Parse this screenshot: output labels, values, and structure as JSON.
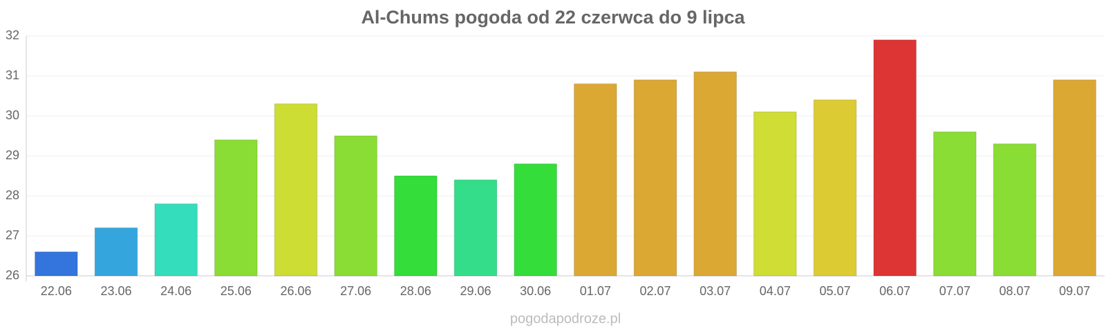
{
  "chart_data": {
    "type": "bar",
    "title": "Al-Chums pogoda od 22 czerwca do 9 lipca",
    "categories": [
      "22.06",
      "23.06",
      "24.06",
      "25.06",
      "26.06",
      "27.06",
      "28.06",
      "29.06",
      "30.06",
      "01.07",
      "02.07",
      "03.07",
      "04.07",
      "05.07",
      "06.07",
      "07.07",
      "08.07",
      "09.07"
    ],
    "values": [
      26.6,
      27.2,
      27.8,
      29.4,
      30.3,
      29.5,
      28.5,
      28.4,
      28.8,
      30.8,
      30.9,
      31.1,
      30.1,
      30.4,
      31.9,
      29.6,
      29.3,
      30.9
    ],
    "colors": [
      "#3474dd",
      "#34a6dd",
      "#34ddbb",
      "#8add34",
      "#cddd34",
      "#8add34",
      "#34dd3a",
      "#34dd8a",
      "#34dd3a",
      "#dba834",
      "#dba834",
      "#dba834",
      "#cfdd34",
      "#ddcb34",
      "#dd3434",
      "#8add34",
      "#8add34",
      "#dba834"
    ],
    "ylim": [
      26,
      32
    ],
    "yticks": [
      26,
      27,
      28,
      29,
      30,
      31,
      32
    ],
    "grid": true,
    "source": "pogodapodroze.pl"
  }
}
